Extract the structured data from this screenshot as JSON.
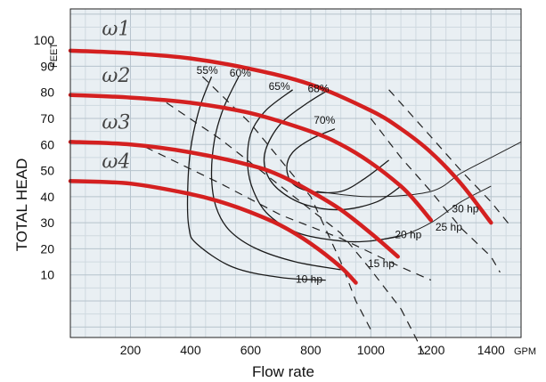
{
  "chart_data": {
    "type": "line",
    "title": "",
    "xlabel": "Flow rate",
    "ylabel": "TOTAL HEAD",
    "x_unit": "GPM",
    "y_unit": "FEET",
    "xlim": [
      0,
      1500
    ],
    "ylim": [
      -14,
      112
    ],
    "grid": true,
    "x_ticks": [
      {
        "value": 200,
        "label": "200"
      },
      {
        "value": 400,
        "label": "400"
      },
      {
        "value": 600,
        "label": "600"
      },
      {
        "value": 800,
        "label": "800"
      },
      {
        "value": 1000,
        "label": "1000"
      },
      {
        "value": 1200,
        "label": "1200"
      },
      {
        "value": 1400,
        "label": "1400"
      }
    ],
    "y_ticks": [
      {
        "value": 10,
        "label": "10"
      },
      {
        "value": 20,
        "label": "20"
      },
      {
        "value": 30,
        "label": "30"
      },
      {
        "value": 40,
        "label": "40"
      },
      {
        "value": 50,
        "label": "50"
      },
      {
        "value": 60,
        "label": "60"
      },
      {
        "value": 70,
        "label": "70"
      },
      {
        "value": 80,
        "label": "80"
      },
      {
        "value": 90,
        "label": "90"
      },
      {
        "value": 100,
        "label": "100"
      }
    ],
    "head_curves": [
      {
        "label": "ω1",
        "color": "#d42020",
        "points": [
          [
            0,
            96
          ],
          [
            200,
            95
          ],
          [
            400,
            93
          ],
          [
            600,
            89
          ],
          [
            800,
            83
          ],
          [
            1000,
            73
          ],
          [
            1100,
            66
          ],
          [
            1200,
            57
          ],
          [
            1300,
            45
          ],
          [
            1400,
            30
          ]
        ]
      },
      {
        "label": "ω2",
        "color": "#d42020",
        "points": [
          [
            0,
            79
          ],
          [
            200,
            78
          ],
          [
            400,
            76
          ],
          [
            600,
            72
          ],
          [
            800,
            65
          ],
          [
            900,
            60
          ],
          [
            1000,
            53
          ],
          [
            1100,
            44
          ],
          [
            1150,
            38
          ],
          [
            1200,
            31
          ]
        ]
      },
      {
        "label": "ω3",
        "color": "#d42020",
        "points": [
          [
            0,
            61
          ],
          [
            200,
            60
          ],
          [
            400,
            57
          ],
          [
            600,
            52
          ],
          [
            700,
            48
          ],
          [
            800,
            42
          ],
          [
            900,
            35
          ],
          [
            1000,
            26
          ],
          [
            1090,
            17
          ]
        ]
      },
      {
        "label": "ω4",
        "color": "#d42020",
        "points": [
          [
            0,
            46
          ],
          [
            200,
            45
          ],
          [
            400,
            41
          ],
          [
            500,
            38
          ],
          [
            600,
            34
          ],
          [
            700,
            29
          ],
          [
            800,
            22
          ],
          [
            900,
            13
          ],
          [
            950,
            7
          ]
        ]
      }
    ],
    "efficiency_curves": [
      {
        "label": "55%",
        "points": [
          [
            470,
            86
          ],
          [
            430,
            74
          ],
          [
            400,
            58
          ],
          [
            390,
            40
          ],
          [
            395,
            28
          ],
          [
            420,
            22
          ],
          [
            540,
            13
          ],
          [
            700,
            9
          ],
          [
            850,
            8
          ]
        ]
      },
      {
        "label": "60%",
        "points": [
          [
            560,
            86
          ],
          [
            510,
            74
          ],
          [
            480,
            62
          ],
          [
            470,
            48
          ],
          [
            485,
            36
          ],
          [
            530,
            27
          ],
          [
            620,
            20
          ],
          [
            750,
            15
          ],
          [
            900,
            12
          ]
        ]
      },
      {
        "label": "65%",
        "points": [
          [
            740,
            81
          ],
          [
            650,
            73
          ],
          [
            600,
            64
          ],
          [
            590,
            52
          ],
          [
            610,
            42
          ],
          [
            660,
            33
          ],
          [
            760,
            26
          ],
          [
            900,
            23
          ],
          [
            1000,
            23
          ],
          [
            1100,
            25
          ]
        ]
      },
      {
        "label": "68%",
        "points": [
          [
            860,
            81
          ],
          [
            790,
            76
          ],
          [
            700,
            68
          ],
          [
            650,
            58
          ],
          [
            650,
            50
          ],
          [
            690,
            43
          ],
          [
            780,
            37
          ],
          [
            900,
            35
          ],
          [
            1020,
            38
          ],
          [
            1100,
            44
          ]
        ]
      },
      {
        "label": "70%",
        "points": [
          [
            880,
            66
          ],
          [
            800,
            62
          ],
          [
            740,
            57
          ],
          [
            720,
            51
          ],
          [
            740,
            45
          ],
          [
            800,
            42
          ],
          [
            900,
            42
          ],
          [
            980,
            47
          ],
          [
            1060,
            54
          ]
        ]
      }
    ],
    "power_lines": [
      {
        "label": "10 hp",
        "points": [
          [
            440,
            86
          ],
          [
            600,
            68
          ],
          [
            800,
            40
          ],
          [
            900,
            15
          ],
          [
            950,
            0
          ],
          [
            1000,
            -11
          ]
        ]
      },
      {
        "label": "15 hp",
        "points": [
          [
            320,
            76
          ],
          [
            500,
            62
          ],
          [
            700,
            44
          ],
          [
            900,
            26
          ],
          [
            1000,
            12
          ],
          [
            1100,
            -3
          ]
        ]
      },
      {
        "label": "20 hp",
        "points": [
          [
            250,
            59
          ],
          [
            500,
            45
          ],
          [
            700,
            33
          ],
          [
            900,
            24
          ],
          [
            1100,
            13
          ],
          [
            1200,
            8
          ]
        ]
      },
      {
        "label": "25 hp",
        "points": [
          [
            1000,
            70
          ],
          [
            1100,
            55
          ],
          [
            1200,
            42
          ],
          [
            1300,
            28
          ],
          [
            1400,
            17
          ],
          [
            1430,
            11
          ]
        ]
      },
      {
        "label": "30 hp",
        "points": [
          [
            1060,
            81
          ],
          [
            1200,
            63
          ],
          [
            1300,
            50
          ],
          [
            1400,
            38
          ],
          [
            1470,
            28
          ]
        ]
      }
    ],
    "power_line_extension": {
      "points": [
        [
          1100,
          -3
        ],
        [
          1180,
          -21
        ]
      ]
    },
    "thin_curves": [
      {
        "points": [
          [
            820,
            42
          ],
          [
            1000,
            40
          ],
          [
            1200,
            42
          ],
          [
            1300,
            49
          ],
          [
            1400,
            55
          ],
          [
            1500,
            61
          ]
        ]
      },
      {
        "points": [
          [
            1000,
            23
          ],
          [
            1100,
            25
          ],
          [
            1200,
            30
          ],
          [
            1300,
            38
          ],
          [
            1400,
            44
          ]
        ]
      }
    ]
  }
}
